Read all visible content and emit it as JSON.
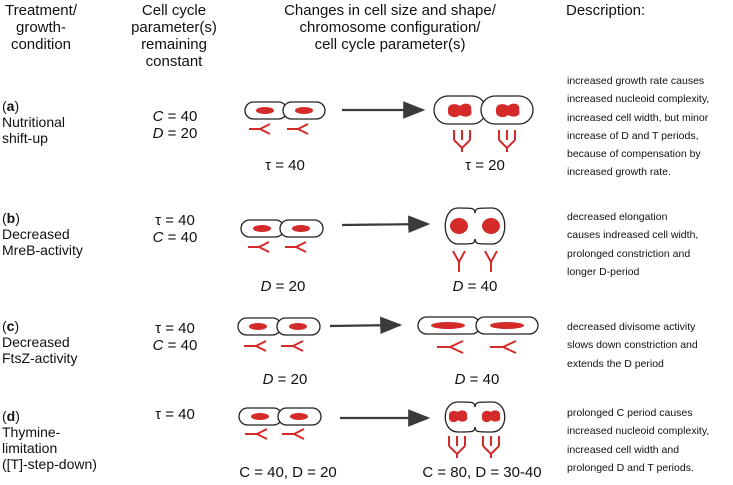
{
  "headers": {
    "treatment": [
      "Treatment/",
      "growth-",
      "condition"
    ],
    "constant": [
      "Cell cycle",
      "parameter(s)",
      "remaining",
      "constant"
    ],
    "changes": [
      "Changes in cell size and shape/",
      "chromosome configuration/",
      "cell cycle parameter(s)"
    ],
    "description": "Description:"
  },
  "rows": [
    {
      "letter": "a",
      "label": [
        "Nutritional",
        "shift-up"
      ],
      "params": [
        {
          "sym": "C",
          "val": "40"
        },
        {
          "sym": "D",
          "val": "20"
        }
      ],
      "before_caption": {
        "sym": "τ",
        "val": "40",
        "italic": false
      },
      "after_caption": {
        "sym": "τ",
        "val": "20",
        "italic": false
      },
      "description": [
        "increased growth rate causes",
        "increased nucleoid complexity,",
        "increased cell width, but minor",
        "increase of D and T periods,",
        "because of compensation by",
        "increased growth rate."
      ]
    },
    {
      "letter": "b",
      "label": [
        "Decreased",
        "MreB-activity"
      ],
      "params": [
        {
          "sym": "τ",
          "val": "40"
        },
        {
          "sym": "C",
          "val": "40"
        }
      ],
      "before_caption": {
        "sym": "D",
        "val": "20",
        "italic": true
      },
      "after_caption": {
        "sym": "D",
        "val": "40",
        "italic": true
      },
      "description": [
        "decreased elongation",
        "causes indreased cell width,",
        "prolonged constriction and",
        "longer D-period"
      ]
    },
    {
      "letter": "c",
      "label": [
        "Decreased",
        "FtsZ-activity"
      ],
      "params": [
        {
          "sym": "τ",
          "val": "40"
        },
        {
          "sym": "C",
          "val": "40"
        }
      ],
      "before_caption": {
        "sym": "D",
        "val": "20",
        "italic": true
      },
      "after_caption": {
        "sym": "D",
        "val": "40",
        "italic": true
      },
      "description": [
        "decreased divisome activity",
        "slows down constriction and",
        "extends the D period"
      ]
    },
    {
      "letter": "d",
      "label": [
        "Thymine-",
        "limitation",
        "([T]-step-down)"
      ],
      "params": [
        {
          "sym": "τ",
          "val": "40"
        }
      ],
      "before_caption_text": "C = 40, D = 20",
      "after_caption_text": "C = 80, D = 30-40",
      "description": [
        "prolonged C period causes",
        "increased nucleoid complexity,",
        "increased cell width and",
        "prolonged D and T periods."
      ]
    }
  ],
  "colors": {
    "nucleoid": "#d42a2a",
    "arrow": "#3a3a3a",
    "outline": "#222222"
  }
}
